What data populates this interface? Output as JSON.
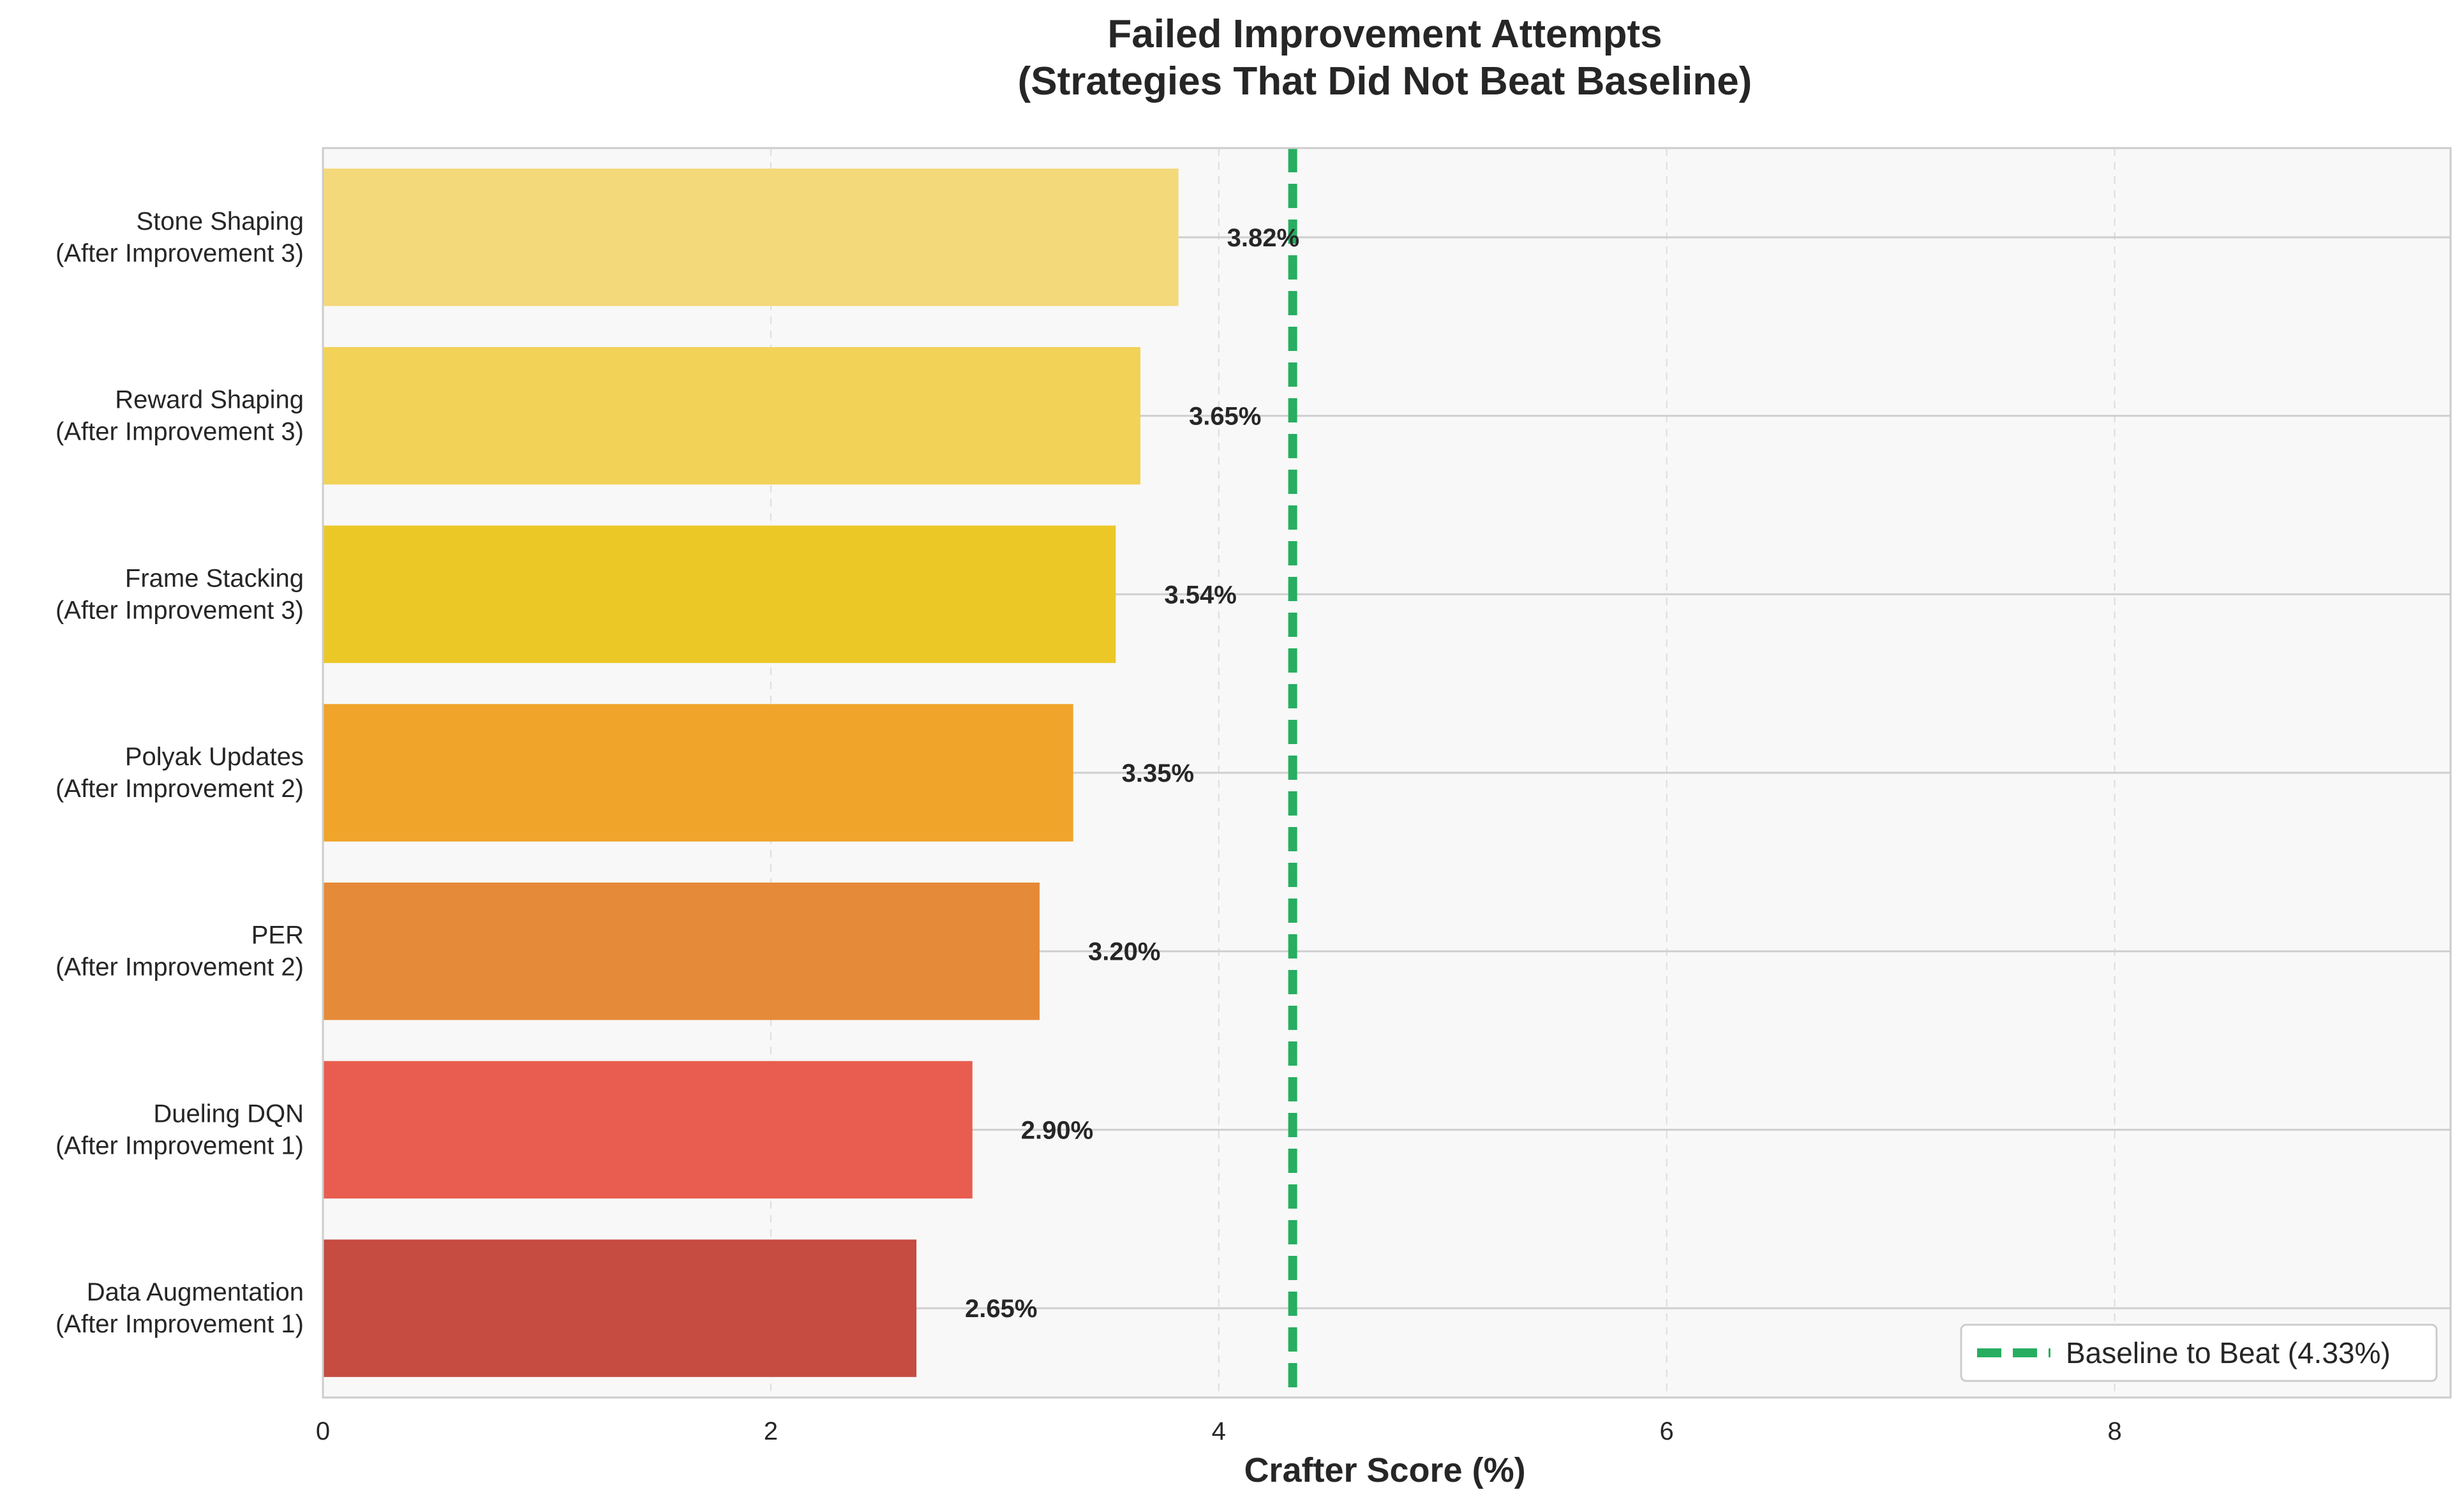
{
  "chart_data": {
    "type": "bar",
    "orientation": "horizontal",
    "title": "Failed Improvement Attempts",
    "subtitle": "(Strategies That Did Not Beat Baseline)",
    "xlabel": "Crafter Score (%)",
    "ylabel": "",
    "xlim": [
      0,
      9.5
    ],
    "xticks": [
      0,
      2,
      4,
      6,
      8
    ],
    "grid": true,
    "categories": [
      [
        "Stone Shaping",
        "(After Improvement 3)"
      ],
      [
        "Reward Shaping",
        "(After Improvement 3)"
      ],
      [
        "Frame Stacking",
        "(After Improvement 3)"
      ],
      [
        "Polyak Updates",
        "(After Improvement 2)"
      ],
      [
        "PER",
        "(After Improvement 2)"
      ],
      [
        "Dueling DQN",
        "(After Improvement 1)"
      ],
      [
        "Data Augmentation",
        "(After Improvement 1)"
      ]
    ],
    "values": [
      3.82,
      3.65,
      3.54,
      3.35,
      3.2,
      2.9,
      2.65
    ],
    "value_labels": [
      "3.82%",
      "3.65%",
      "3.54%",
      "3.35%",
      "3.20%",
      "2.90%",
      "2.65%"
    ],
    "bar_colors": [
      "#f4d97a",
      "#f2d257",
      "#ecc827",
      "#f0a42a",
      "#e58a39",
      "#e85d4f",
      "#c64b40"
    ],
    "baseline": {
      "value": 4.33,
      "label": "Baseline to Beat (4.33%)",
      "color": "#27ae60",
      "style": "dashed"
    },
    "legend_position": "lower-right"
  }
}
